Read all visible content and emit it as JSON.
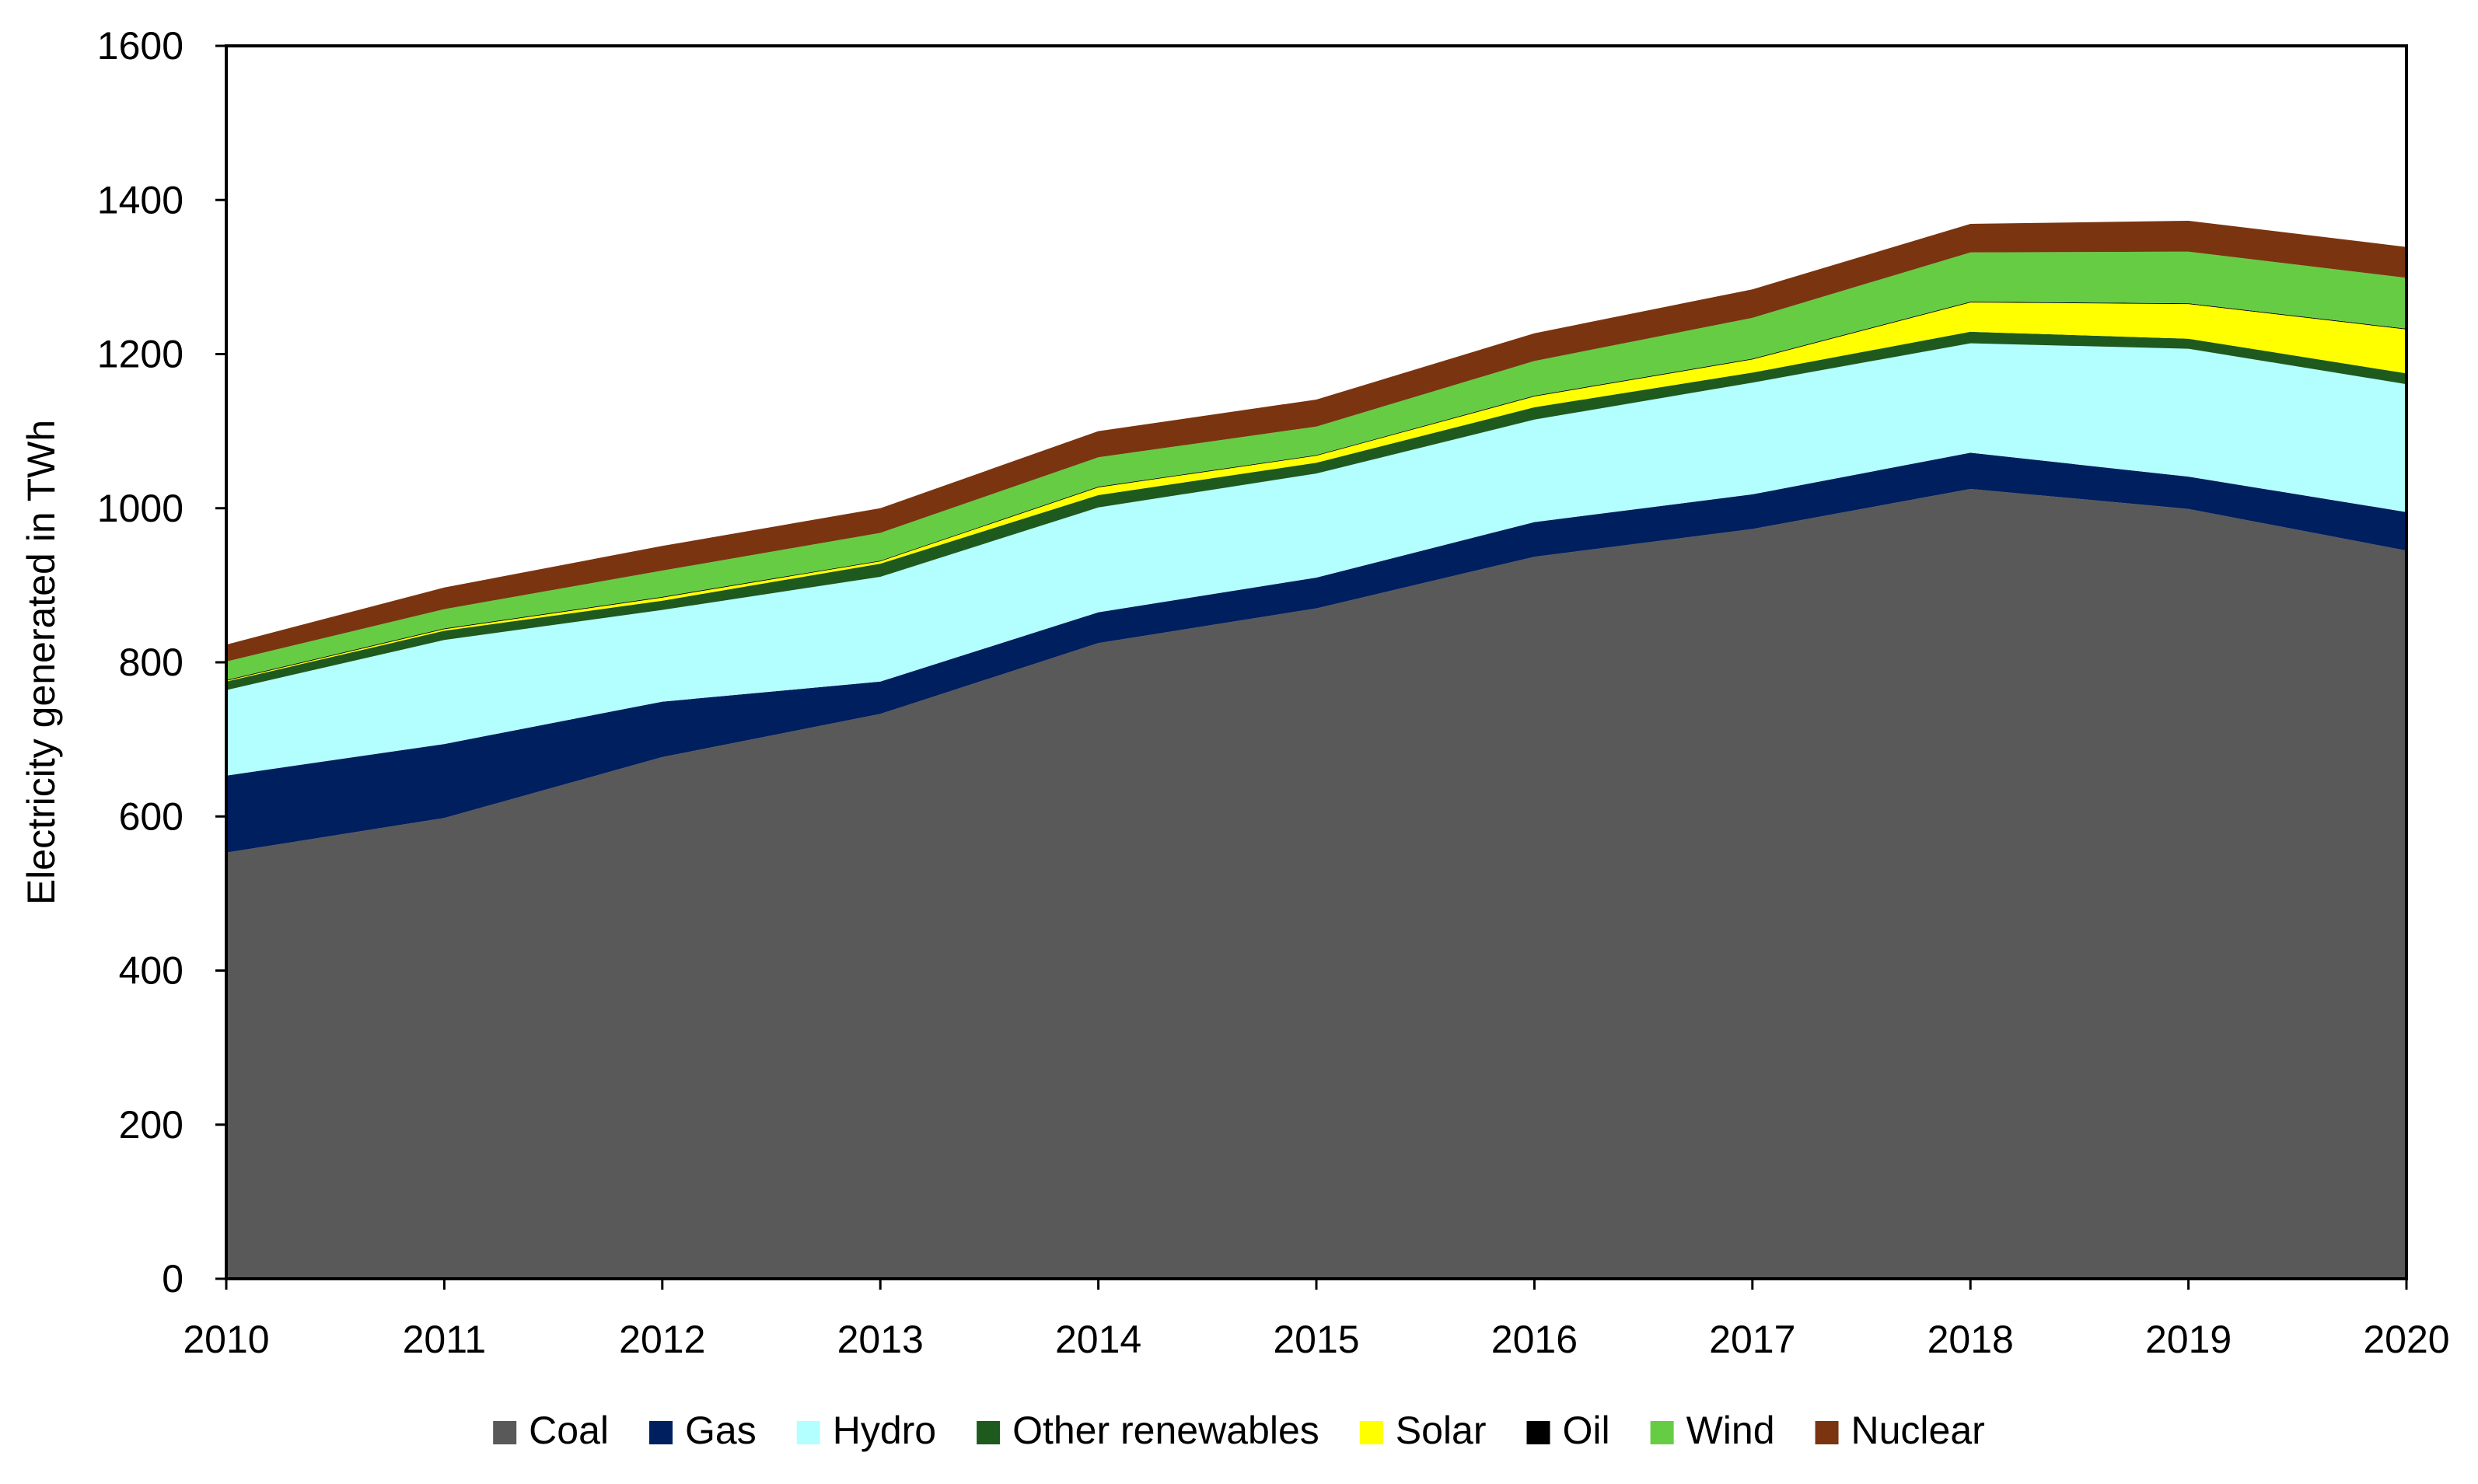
{
  "chart_data": {
    "type": "area",
    "stacked": true,
    "title": "",
    "xlabel": "",
    "ylabel": "Electricity generated in TWh",
    "ylim": [
      0,
      1600
    ],
    "yticks": [
      0,
      200,
      400,
      600,
      800,
      1000,
      1200,
      1400,
      1600
    ],
    "x": [
      "2010",
      "2011",
      "2012",
      "2013",
      "2014",
      "2015",
      "2016",
      "2017",
      "2018",
      "2019",
      "2020"
    ],
    "legend_position": "bottom",
    "series": [
      {
        "name": "Coal",
        "color": "#595959",
        "values": [
          553,
          598,
          677,
          733,
          825,
          870,
          937,
          973,
          1025,
          999,
          945
        ]
      },
      {
        "name": "Gas",
        "color": "#001f5f",
        "values": [
          100,
          96,
          72,
          42,
          40,
          40,
          45,
          45,
          47,
          42,
          50
        ]
      },
      {
        "name": "Hydro",
        "color": "#b3ffff",
        "values": [
          111,
          135,
          119,
          136,
          136,
          135,
          133,
          145,
          142,
          166,
          166
        ]
      },
      {
        "name": "Other renewables",
        "color": "#1e5a1e",
        "values": [
          11,
          12,
          12,
          17,
          16,
          14,
          16,
          13,
          15,
          13,
          14
        ]
      },
      {
        "name": "Solar",
        "color": "#ffff00",
        "values": [
          1,
          2,
          4,
          3,
          10,
          9,
          14,
          17,
          38,
          45,
          57
        ]
      },
      {
        "name": "Oil",
        "color": "#000000",
        "values": [
          1,
          1,
          1,
          1,
          1,
          1,
          1,
          1,
          1,
          1,
          1
        ]
      },
      {
        "name": "Wind",
        "color": "#66cc44",
        "values": [
          24,
          25,
          34,
          36,
          38,
          37,
          45,
          53,
          64,
          67,
          66
        ]
      },
      {
        "name": "Nuclear",
        "color": "#7b3410",
        "values": [
          22,
          28,
          32,
          32,
          34,
          35,
          36,
          37,
          37,
          40,
          40
        ]
      }
    ]
  }
}
